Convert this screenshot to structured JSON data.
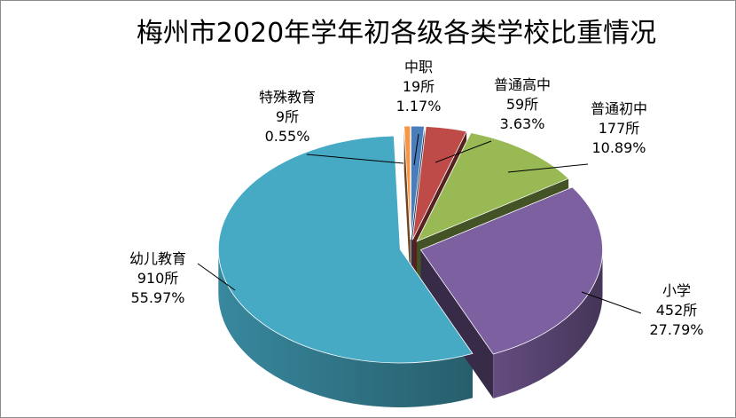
{
  "chart_data": {
    "type": "pie",
    "title": "梅州市2020年学年初各级各类学校比重情况",
    "style": "3d-exploded",
    "slices": [
      {
        "name": "中职",
        "count": "19所",
        "percent": "1.17%",
        "value": 1.17,
        "color": "#4a7ebb"
      },
      {
        "name": "普通高中",
        "count": "59所",
        "percent": "3.63%",
        "value": 3.63,
        "color": "#be4b48"
      },
      {
        "name": "普通初中",
        "count": "177所",
        "percent": "10.89%",
        "value": 10.89,
        "color": "#98b954"
      },
      {
        "name": "小学",
        "count": "452所",
        "percent": "27.79%",
        "value": 27.79,
        "color": "#7d60a0"
      },
      {
        "name": "幼儿教育",
        "count": "910所",
        "percent": "55.97%",
        "value": 55.97,
        "color": "#46aac5"
      },
      {
        "name": "特殊教育",
        "count": "9所",
        "percent": "0.55%",
        "value": 0.55,
        "color": "#f79646"
      }
    ]
  }
}
